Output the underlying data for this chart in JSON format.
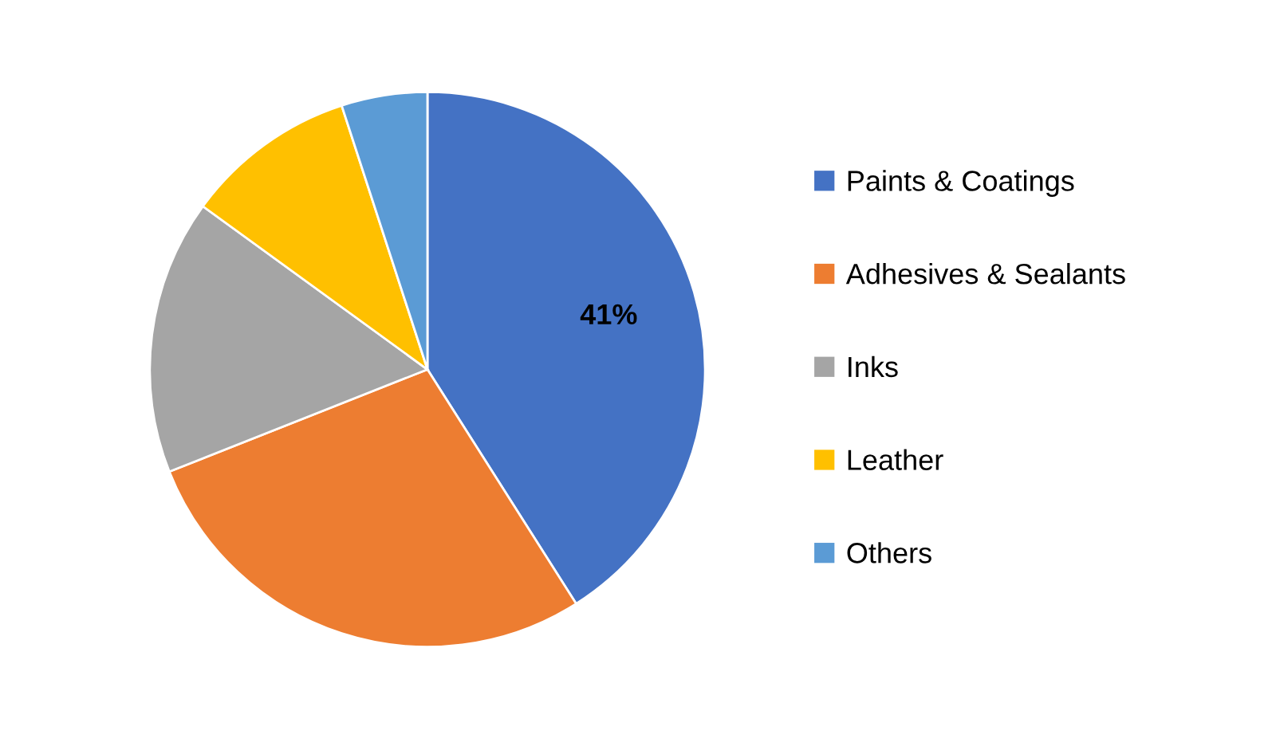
{
  "chart_data": {
    "type": "pie",
    "categories": [
      "Paints & Coatings",
      "Adhesives & Sealants",
      "Inks",
      "Leather",
      "Others"
    ],
    "values": [
      41,
      28,
      16,
      10,
      5
    ],
    "colors": [
      "#4472c4",
      "#ed7d31",
      "#a5a5a5",
      "#ffc000",
      "#5b9bd5"
    ],
    "value_labels": [
      "41%",
      null,
      null,
      null,
      null
    ],
    "legend": "right"
  }
}
